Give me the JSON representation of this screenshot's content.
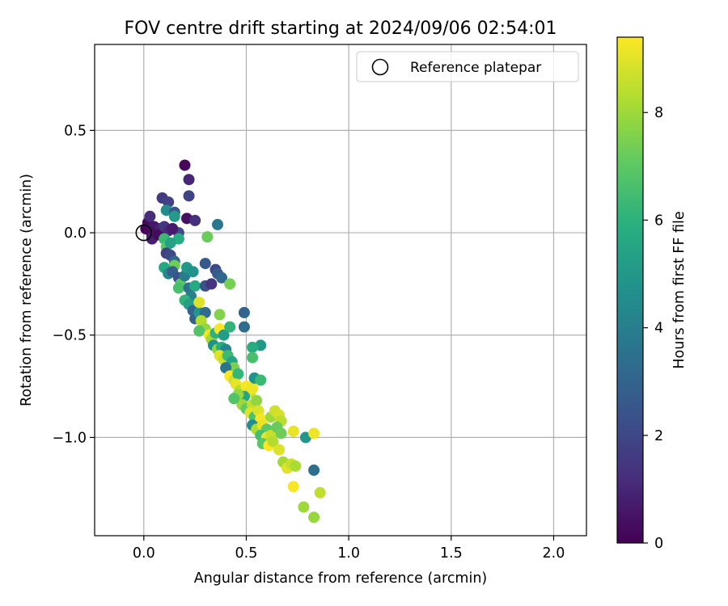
{
  "chart_data": {
    "type": "scatter",
    "title": "FOV centre drift starting at 2024/09/06 02:54:01",
    "xlabel": "Angular distance from reference (arcmin)",
    "ylabel": "Rotation from reference (arcmin)",
    "xlim": [
      -0.24,
      2.16
    ],
    "ylim": [
      -1.48,
      0.92
    ],
    "xticks": [
      {
        "value": 0.0,
        "label": "0.0"
      },
      {
        "value": 0.5,
        "label": "0.5"
      },
      {
        "value": 1.0,
        "label": "1.0"
      },
      {
        "value": 1.5,
        "label": "1.5"
      },
      {
        "value": 2.0,
        "label": "2.0"
      }
    ],
    "yticks": [
      {
        "value": 0.5,
        "label": "0.5"
      },
      {
        "value": 0.0,
        "label": "0.0"
      },
      {
        "value": -0.5,
        "label": "−0.5"
      },
      {
        "value": -1.0,
        "label": "−1.0"
      }
    ],
    "grid": true,
    "legend": {
      "position": "top-right",
      "entries": [
        "Reference platepar"
      ]
    },
    "reference_point": {
      "x": 0.0,
      "y": 0.0,
      "marker": "open-circle"
    },
    "colorbar": {
      "label": "Hours from first FF file",
      "colormap": "viridis",
      "range": [
        0,
        9.4
      ],
      "ticks": [
        {
          "value": 0,
          "label": "0"
        },
        {
          "value": 2,
          "label": "2"
        },
        {
          "value": 4,
          "label": "4"
        },
        {
          "value": 6,
          "label": "6"
        },
        {
          "value": 8,
          "label": "8"
        }
      ]
    },
    "points": [
      {
        "x": 0.01,
        "y": 0.02,
        "h": 0.1
      },
      {
        "x": 0.02,
        "y": 0.05,
        "h": 0.3
      },
      {
        "x": 0.03,
        "y": 0.01,
        "h": 0.2
      },
      {
        "x": 0.04,
        "y": -0.02,
        "h": 0.5
      },
      {
        "x": 0.05,
        "y": 0.03,
        "h": 0.6
      },
      {
        "x": 0.03,
        "y": 0.08,
        "h": 1.2
      },
      {
        "x": 0.06,
        "y": 0.0,
        "h": 0.4
      },
      {
        "x": 0.04,
        "y": -0.03,
        "h": 0.8
      },
      {
        "x": 0.08,
        "y": 0.02,
        "h": 0.9
      },
      {
        "x": 0.07,
        "y": -0.01,
        "h": 0.3
      },
      {
        "x": 0.1,
        "y": 0.03,
        "h": 1.5
      },
      {
        "x": 0.12,
        "y": 0.01,
        "h": 1.1
      },
      {
        "x": 0.09,
        "y": 0.17,
        "h": 1.6
      },
      {
        "x": 0.12,
        "y": 0.15,
        "h": 1.8
      },
      {
        "x": 0.2,
        "y": 0.33,
        "h": 0.2
      },
      {
        "x": 0.22,
        "y": 0.26,
        "h": 1.0
      },
      {
        "x": 0.22,
        "y": 0.18,
        "h": 1.9
      },
      {
        "x": 0.21,
        "y": 0.07,
        "h": 0.4
      },
      {
        "x": 0.25,
        "y": 0.06,
        "h": 1.3
      },
      {
        "x": 0.36,
        "y": 0.04,
        "h": 3.7
      },
      {
        "x": 0.11,
        "y": 0.11,
        "h": 4.6
      },
      {
        "x": 0.15,
        "y": 0.1,
        "h": 2.5
      },
      {
        "x": 0.15,
        "y": 0.08,
        "h": 5.1
      },
      {
        "x": 0.17,
        "y": 0.0,
        "h": 2.2
      },
      {
        "x": 0.14,
        "y": 0.02,
        "h": 0.7
      },
      {
        "x": 0.17,
        "y": -0.03,
        "h": 5.8
      },
      {
        "x": 0.1,
        "y": -0.03,
        "h": 6.3
      },
      {
        "x": 0.11,
        "y": -0.07,
        "h": 6.9
      },
      {
        "x": 0.13,
        "y": -0.05,
        "h": 5.4
      },
      {
        "x": 0.11,
        "y": -0.1,
        "h": 1.7
      },
      {
        "x": 0.13,
        "y": -0.11,
        "h": 2.1
      },
      {
        "x": 0.15,
        "y": -0.14,
        "h": 3.2
      },
      {
        "x": 0.15,
        "y": -0.16,
        "h": 7.3
      },
      {
        "x": 0.1,
        "y": -0.17,
        "h": 5.6
      },
      {
        "x": 0.12,
        "y": -0.2,
        "h": 4.4
      },
      {
        "x": 0.14,
        "y": -0.19,
        "h": 2.8
      },
      {
        "x": 0.17,
        "y": -0.22,
        "h": 2.4
      },
      {
        "x": 0.18,
        "y": -0.25,
        "h": 7.0
      },
      {
        "x": 0.17,
        "y": -0.27,
        "h": 6.6
      },
      {
        "x": 0.2,
        "y": -0.21,
        "h": 3.9
      },
      {
        "x": 0.21,
        "y": -0.17,
        "h": 5.0
      },
      {
        "x": 0.24,
        "y": -0.19,
        "h": 4.8
      },
      {
        "x": 0.22,
        "y": -0.27,
        "h": 3.5
      },
      {
        "x": 0.25,
        "y": -0.26,
        "h": 5.7
      },
      {
        "x": 0.23,
        "y": -0.31,
        "h": 4.1
      },
      {
        "x": 0.2,
        "y": -0.33,
        "h": 6.1
      },
      {
        "x": 0.22,
        "y": -0.35,
        "h": 5.3
      },
      {
        "x": 0.24,
        "y": -0.38,
        "h": 3.0
      },
      {
        "x": 0.25,
        "y": -0.42,
        "h": 2.9
      },
      {
        "x": 0.27,
        "y": -0.39,
        "h": 4.9
      },
      {
        "x": 0.27,
        "y": -0.34,
        "h": 8.9
      },
      {
        "x": 0.3,
        "y": -0.26,
        "h": 2.3
      },
      {
        "x": 0.33,
        "y": -0.25,
        "h": 1.4
      },
      {
        "x": 0.3,
        "y": -0.15,
        "h": 2.6
      },
      {
        "x": 0.35,
        "y": -0.18,
        "h": 2.0
      },
      {
        "x": 0.36,
        "y": -0.2,
        "h": 2.7
      },
      {
        "x": 0.38,
        "y": -0.22,
        "h": 3.1
      },
      {
        "x": 0.31,
        "y": -0.02,
        "h": 7.2
      },
      {
        "x": 0.42,
        "y": -0.25,
        "h": 7.4
      },
      {
        "x": 0.3,
        "y": -0.39,
        "h": 3.3
      },
      {
        "x": 0.37,
        "y": -0.4,
        "h": 7.6
      },
      {
        "x": 0.28,
        "y": -0.43,
        "h": 8.3
      },
      {
        "x": 0.3,
        "y": -0.47,
        "h": 7.9
      },
      {
        "x": 0.27,
        "y": -0.48,
        "h": 6.8
      },
      {
        "x": 0.32,
        "y": -0.5,
        "h": 9.2
      },
      {
        "x": 0.33,
        "y": -0.52,
        "h": 8.1
      },
      {
        "x": 0.35,
        "y": -0.49,
        "h": 6.0
      },
      {
        "x": 0.37,
        "y": -0.47,
        "h": 9.3
      },
      {
        "x": 0.39,
        "y": -0.5,
        "h": 5.2
      },
      {
        "x": 0.34,
        "y": -0.55,
        "h": 4.7
      },
      {
        "x": 0.36,
        "y": -0.57,
        "h": 7.7
      },
      {
        "x": 0.38,
        "y": -0.56,
        "h": 5.9
      },
      {
        "x": 0.4,
        "y": -0.57,
        "h": 4.3
      },
      {
        "x": 0.37,
        "y": -0.6,
        "h": 9.0
      },
      {
        "x": 0.39,
        "y": -0.62,
        "h": 8.6
      },
      {
        "x": 0.41,
        "y": -0.6,
        "h": 6.4
      },
      {
        "x": 0.43,
        "y": -0.63,
        "h": 5.5
      },
      {
        "x": 0.44,
        "y": -0.66,
        "h": 7.5
      },
      {
        "x": 0.4,
        "y": -0.66,
        "h": 3.6
      },
      {
        "x": 0.42,
        "y": -0.7,
        "h": 9.4
      },
      {
        "x": 0.44,
        "y": -0.72,
        "h": 8.7
      },
      {
        "x": 0.46,
        "y": -0.69,
        "h": 6.2
      },
      {
        "x": 0.45,
        "y": -0.74,
        "h": 9.1
      },
      {
        "x": 0.47,
        "y": -0.77,
        "h": 8.4
      },
      {
        "x": 0.5,
        "y": -0.75,
        "h": 9.3
      },
      {
        "x": 0.52,
        "y": -0.78,
        "h": 8.8
      },
      {
        "x": 0.53,
        "y": -0.76,
        "h": 9.2
      },
      {
        "x": 0.49,
        "y": -0.8,
        "h": 5.6
      },
      {
        "x": 0.48,
        "y": -0.84,
        "h": 8.0
      },
      {
        "x": 0.5,
        "y": -0.86,
        "h": 7.1
      },
      {
        "x": 0.53,
        "y": -0.84,
        "h": 8.5
      },
      {
        "x": 0.55,
        "y": -0.82,
        "h": 7.8
      },
      {
        "x": 0.52,
        "y": -0.88,
        "h": 9.0
      },
      {
        "x": 0.54,
        "y": -0.9,
        "h": 6.7
      },
      {
        "x": 0.56,
        "y": -0.87,
        "h": 8.9
      },
      {
        "x": 0.57,
        "y": -0.91,
        "h": 9.3
      },
      {
        "x": 0.53,
        "y": -0.94,
        "h": 4.5
      },
      {
        "x": 0.55,
        "y": -0.96,
        "h": 8.2
      },
      {
        "x": 0.58,
        "y": -0.94,
        "h": 9.1
      },
      {
        "x": 0.6,
        "y": -0.96,
        "h": 7.0
      },
      {
        "x": 0.57,
        "y": -0.99,
        "h": 6.5
      },
      {
        "x": 0.6,
        "y": -1.0,
        "h": 9.2
      },
      {
        "x": 0.62,
        "y": -0.99,
        "h": 8.6
      },
      {
        "x": 0.58,
        "y": -1.03,
        "h": 6.9
      },
      {
        "x": 0.61,
        "y": -1.04,
        "h": 9.4
      },
      {
        "x": 0.63,
        "y": -1.02,
        "h": 8.3
      },
      {
        "x": 0.62,
        "y": -0.9,
        "h": 8.0
      },
      {
        "x": 0.64,
        "y": -0.87,
        "h": 8.7
      },
      {
        "x": 0.66,
        "y": -0.89,
        "h": 8.8
      },
      {
        "x": 0.67,
        "y": -0.92,
        "h": 8.4
      },
      {
        "x": 0.65,
        "y": -0.95,
        "h": 7.2
      },
      {
        "x": 0.67,
        "y": -0.98,
        "h": 7.3
      },
      {
        "x": 0.66,
        "y": -1.06,
        "h": 8.9
      },
      {
        "x": 0.68,
        "y": -1.12,
        "h": 8.1
      },
      {
        "x": 0.7,
        "y": -1.15,
        "h": 9.0
      },
      {
        "x": 0.72,
        "y": -1.13,
        "h": 8.6
      },
      {
        "x": 0.74,
        "y": -1.14,
        "h": 8.2
      },
      {
        "x": 0.73,
        "y": -0.97,
        "h": 9.1
      },
      {
        "x": 0.79,
        "y": -1.0,
        "h": 4.9
      },
      {
        "x": 0.83,
        "y": -0.98,
        "h": 9.2
      },
      {
        "x": 0.83,
        "y": -1.16,
        "h": 3.4
      },
      {
        "x": 0.73,
        "y": -1.24,
        "h": 9.3
      },
      {
        "x": 0.86,
        "y": -1.27,
        "h": 8.5
      },
      {
        "x": 0.78,
        "y": -1.34,
        "h": 8.0
      },
      {
        "x": 0.83,
        "y": -1.39,
        "h": 7.9
      },
      {
        "x": 0.49,
        "y": -0.39,
        "h": 3.0
      },
      {
        "x": 0.49,
        "y": -0.46,
        "h": 3.3
      },
      {
        "x": 0.57,
        "y": -0.55,
        "h": 5.0
      },
      {
        "x": 0.53,
        "y": -0.56,
        "h": 5.8
      },
      {
        "x": 0.53,
        "y": -0.61,
        "h": 6.6
      },
      {
        "x": 0.42,
        "y": -0.46,
        "h": 6.1
      },
      {
        "x": 0.54,
        "y": -0.71,
        "h": 4.8
      },
      {
        "x": 0.57,
        "y": -0.72,
        "h": 6.3
      },
      {
        "x": 0.46,
        "y": -0.79,
        "h": 7.9
      },
      {
        "x": 0.44,
        "y": -0.81,
        "h": 6.8
      }
    ]
  }
}
